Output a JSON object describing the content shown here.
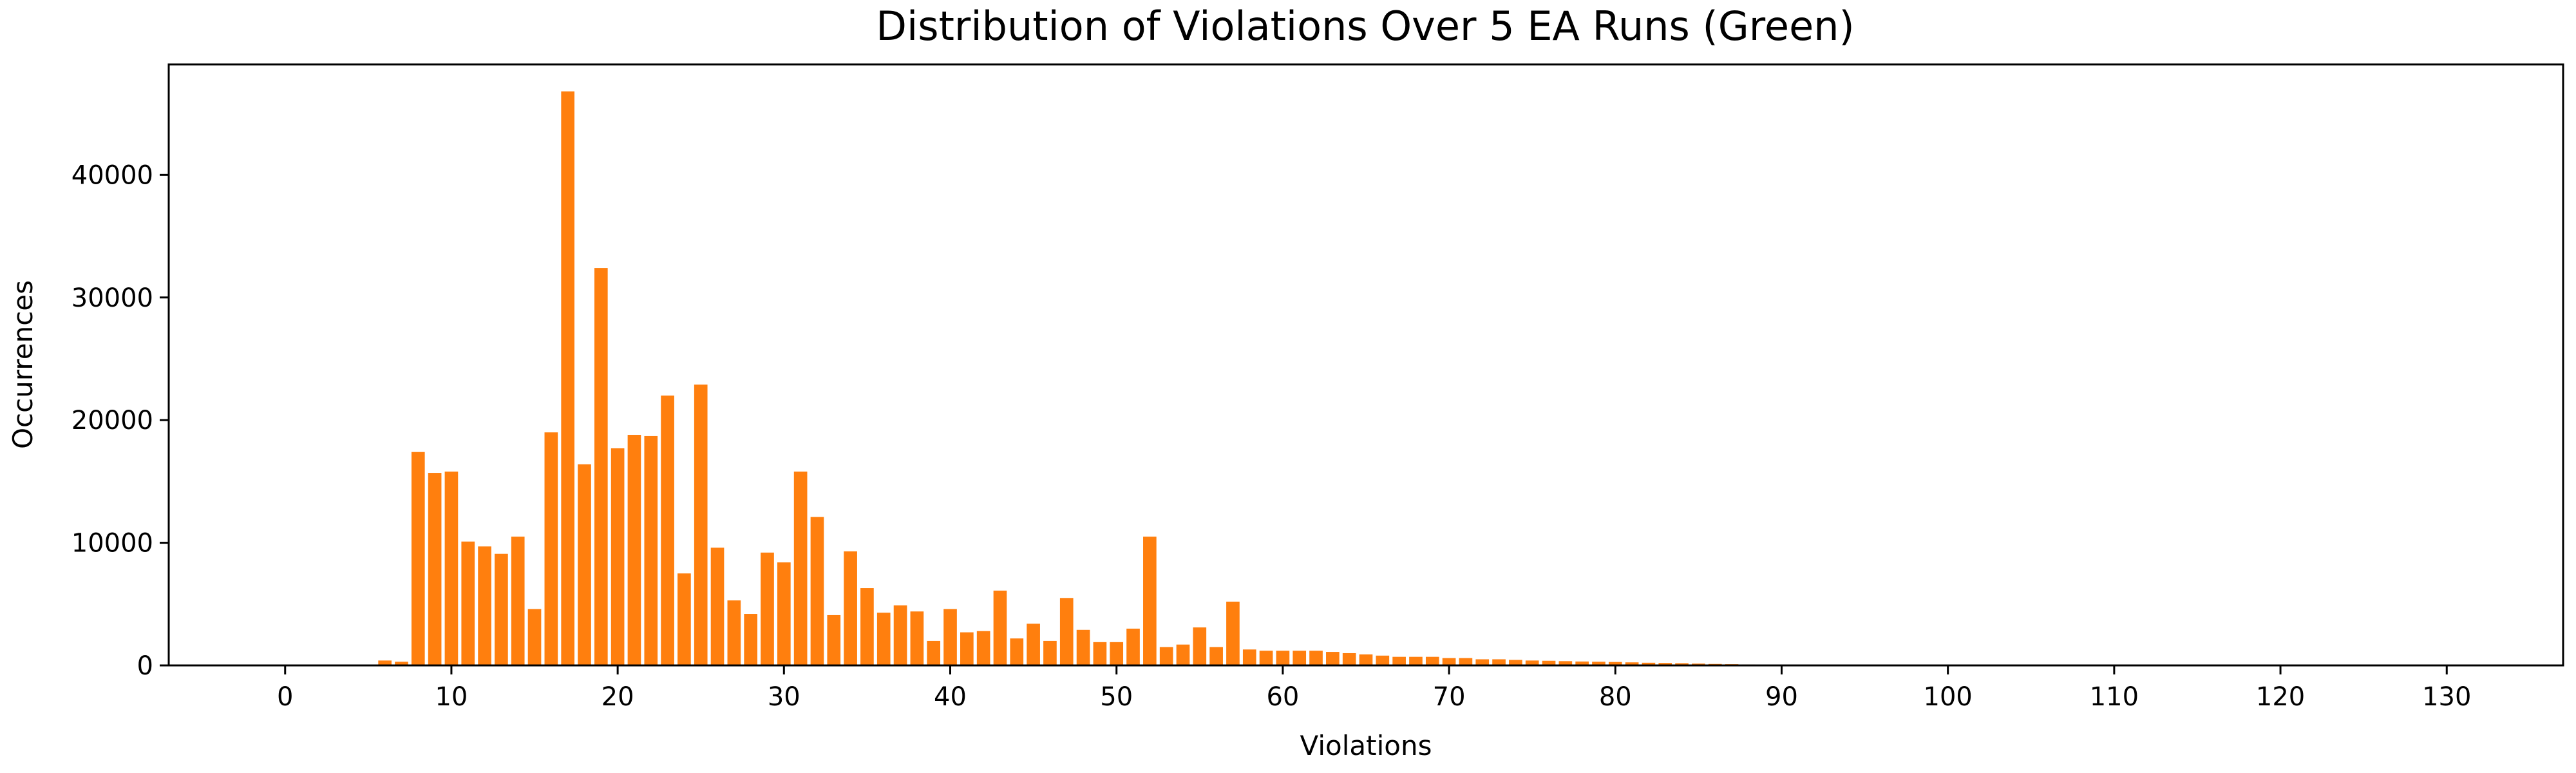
{
  "chart_data": {
    "type": "bar",
    "title": "Distribution of Violations Over 5 EA Runs (Green)",
    "xlabel": "Violations",
    "ylabel": "Occurrences",
    "xlim": [
      -7,
      137
    ],
    "ylim": [
      0,
      49000
    ],
    "xticks": [
      0,
      10,
      20,
      30,
      40,
      50,
      60,
      70,
      80,
      90,
      100,
      110,
      120,
      130
    ],
    "yticks": [
      0,
      10000,
      20000,
      30000,
      40000
    ],
    "bar_color": "#ff7f0e",
    "grid": false,
    "x": [
      6,
      7,
      8,
      9,
      10,
      11,
      12,
      13,
      14,
      15,
      16,
      17,
      18,
      19,
      20,
      21,
      22,
      23,
      24,
      25,
      26,
      27,
      28,
      29,
      30,
      31,
      32,
      33,
      34,
      35,
      36,
      37,
      38,
      39,
      40,
      41,
      42,
      43,
      44,
      45,
      46,
      47,
      48,
      49,
      50,
      51,
      52,
      53,
      54,
      55,
      56,
      57,
      58,
      59,
      60,
      61,
      62,
      63,
      64,
      65,
      66,
      67,
      68,
      69,
      70,
      71,
      72,
      73,
      74,
      75,
      76,
      77,
      78,
      79,
      80,
      81,
      82,
      83,
      84,
      85,
      86,
      87,
      88,
      89,
      90
    ],
    "values": [
      400,
      300,
      17400,
      15700,
      15800,
      10100,
      9700,
      9100,
      10500,
      4600,
      19000,
      46800,
      16400,
      32400,
      17700,
      18800,
      18700,
      22000,
      7500,
      22900,
      9600,
      5300,
      4200,
      9200,
      8400,
      15800,
      12100,
      4100,
      9300,
      6300,
      4300,
      4900,
      4400,
      2000,
      4600,
      2700,
      2800,
      6100,
      2200,
      3400,
      2000,
      5500,
      2900,
      1900,
      1900,
      3000,
      10500,
      1500,
      1700,
      3100,
      1500,
      5200,
      1300,
      1200,
      1200,
      1200,
      1200,
      1100,
      1000,
      900,
      800,
      700,
      700,
      700,
      600,
      600,
      500,
      500,
      450,
      400,
      380,
      350,
      320,
      300,
      280,
      250,
      220,
      200,
      180,
      150,
      120,
      100,
      80,
      50,
      30
    ]
  }
}
